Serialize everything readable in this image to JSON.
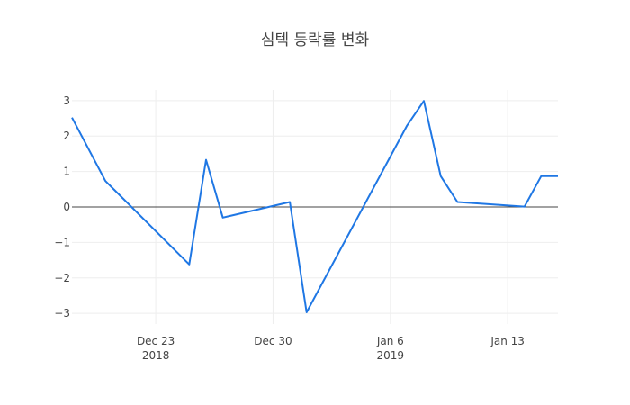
{
  "chart_data": {
    "type": "line",
    "title": "심텍 등락률 변화",
    "xlabel": "",
    "ylabel": "",
    "x": [
      "2018-12-18",
      "2018-12-20",
      "2018-12-25",
      "2018-12-26",
      "2018-12-27",
      "2018-12-31",
      "2019-01-01",
      "2019-01-07",
      "2019-01-08",
      "2019-01-09",
      "2019-01-10",
      "2019-01-14",
      "2019-01-15",
      "2019-01-16"
    ],
    "series": [
      {
        "name": "",
        "color": "#1f77e4",
        "values": [
          2.52,
          0.73,
          -1.62,
          1.33,
          -0.3,
          0.14,
          -2.97,
          2.3,
          2.99,
          0.87,
          0.14,
          0.01,
          0.87,
          0.87
        ]
      }
    ],
    "xlim": [
      "2018-12-18",
      "2019-01-16"
    ],
    "ylim": [
      -3.3,
      3.3
    ],
    "x_ticks": [
      {
        "date": "2018-12-23",
        "label": "Dec 23",
        "sublabel": "2018"
      },
      {
        "date": "2018-12-30",
        "label": "Dec 30",
        "sublabel": ""
      },
      {
        "date": "2019-01-06",
        "label": "Jan 6",
        "sublabel": "2019"
      },
      {
        "date": "2019-01-13",
        "label": "Jan 13",
        "sublabel": ""
      }
    ],
    "y_ticks": [
      {
        "value": 3,
        "label": "3"
      },
      {
        "value": 2,
        "label": "2"
      },
      {
        "value": 1,
        "label": "1"
      },
      {
        "value": 0,
        "label": "0"
      },
      {
        "value": -1,
        "label": "−1"
      },
      {
        "value": -2,
        "label": "−2"
      },
      {
        "value": -3,
        "label": "−3"
      }
    ],
    "grid": true,
    "legend": "none"
  }
}
